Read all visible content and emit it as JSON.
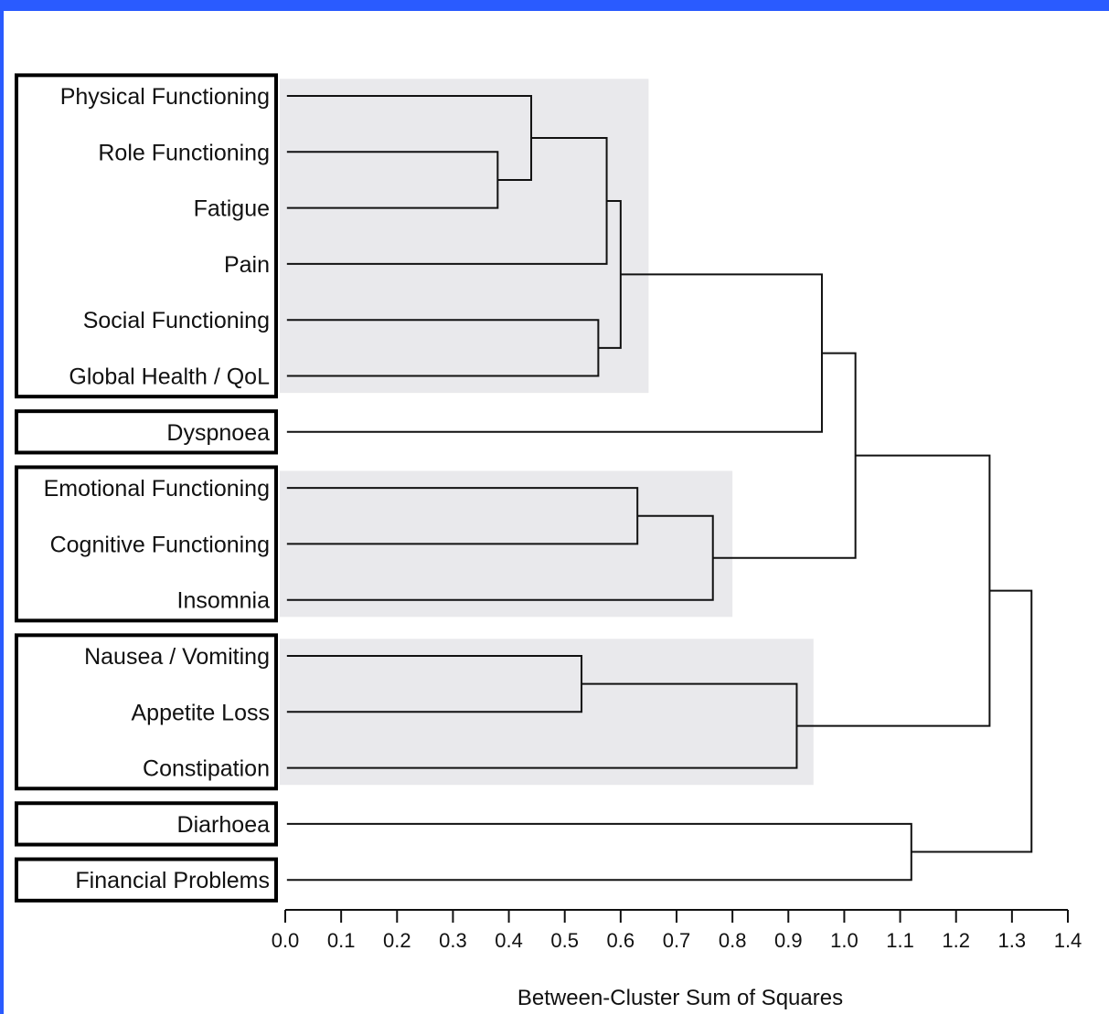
{
  "chart_data": {
    "type": "dendrogram",
    "xlabel": "Between-Cluster Sum of Squares",
    "xlim": [
      0.0,
      1.4
    ],
    "ticks": [
      "0.0",
      "0.1",
      "0.2",
      "0.3",
      "0.4",
      "0.5",
      "0.6",
      "0.7",
      "0.8",
      "0.9",
      "1.0",
      "1.1",
      "1.2",
      "1.3",
      "1.4"
    ],
    "leaves": [
      "Physical Functioning",
      "Role Functioning",
      "Fatigue",
      "Pain",
      "Social Functioning",
      "Global Health / QoL",
      "Dyspnoea",
      "Emotional Functioning",
      "Cognitive Functioning",
      "Insomnia",
      "Nausea / Vomiting",
      "Appetite Loss",
      "Constipation",
      "Diarhoea",
      "Financial Problems"
    ],
    "merges": [
      {
        "id": "A",
        "children": [
          1,
          2
        ],
        "height": 0.38
      },
      {
        "id": "B",
        "children": [
          0,
          "A"
        ],
        "height": 0.44
      },
      {
        "id": "C",
        "children": [
          "B",
          3
        ],
        "height": 0.575
      },
      {
        "id": "D",
        "children": [
          4,
          5
        ],
        "height": 0.56
      },
      {
        "id": "E",
        "children": [
          "C",
          "D"
        ],
        "height": 0.6
      },
      {
        "id": "F",
        "children": [
          7,
          8
        ],
        "height": 0.63
      },
      {
        "id": "G",
        "children": [
          "F",
          9
        ],
        "height": 0.765
      },
      {
        "id": "H",
        "children": [
          10,
          11
        ],
        "height": 0.53
      },
      {
        "id": "I",
        "children": [
          "H",
          12
        ],
        "height": 0.915
      },
      {
        "id": "J",
        "children": [
          "E",
          6
        ],
        "height": 0.96
      },
      {
        "id": "K",
        "children": [
          "J",
          "G"
        ],
        "height": 1.02
      },
      {
        "id": "L",
        "children": [
          13,
          14
        ],
        "height": 1.12
      },
      {
        "id": "M",
        "children": [
          "K",
          "I"
        ],
        "height": 1.26
      },
      {
        "id": "N",
        "children": [
          "M",
          "L"
        ],
        "height": 1.335
      }
    ],
    "groups": [
      {
        "leaves": [
          0,
          5
        ],
        "shaded_to": 0.65
      },
      {
        "leaves": [
          6,
          6
        ]
      },
      {
        "leaves": [
          7,
          9
        ],
        "shaded_to": 0.8
      },
      {
        "leaves": [
          10,
          12
        ],
        "shaded_to": 0.945
      },
      {
        "leaves": [
          13,
          13
        ]
      },
      {
        "leaves": [
          14,
          14
        ]
      }
    ]
  }
}
